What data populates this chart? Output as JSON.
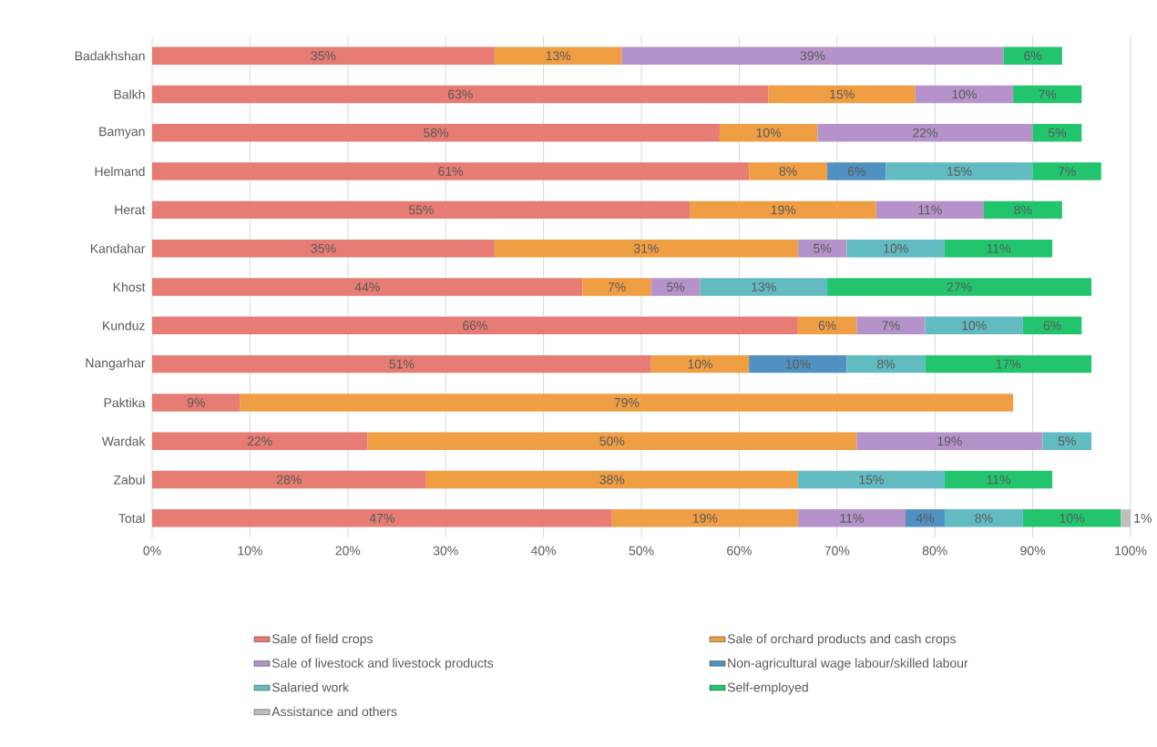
{
  "chart_data": {
    "type": "bar",
    "orientation": "horizontal",
    "stacked": true,
    "categories": [
      "Badakhshan",
      "Balkh",
      "Bamyan",
      "Helmand",
      "Herat",
      "Kandahar",
      "Khost",
      "Kunduz",
      "Nangarhar",
      "Paktika",
      "Wardak",
      "Zabul",
      "Total"
    ],
    "series": [
      {
        "name": "Sale of field crops",
        "color": "#e67c73",
        "values": [
          35,
          63,
          58,
          61,
          55,
          35,
          44,
          66,
          51,
          9,
          22,
          28,
          47
        ],
        "value_labels": [
          "35%",
          "63%",
          "58%",
          "61%",
          "55%",
          "35%",
          "44%",
          "66%",
          "51%",
          "9%",
          "22%",
          "28%",
          "47%"
        ]
      },
      {
        "name": "Sale of orchard products and cash crops",
        "color": "#ef9e43",
        "values": [
          13,
          15,
          10,
          8,
          19,
          31,
          7,
          6,
          10,
          79,
          50,
          38,
          19
        ],
        "value_labels": [
          "13%",
          "15%",
          "10%",
          "8%",
          "19%",
          "31%",
          "7%",
          "6%",
          "10%",
          "79%",
          "50%",
          "38%",
          "19%"
        ]
      },
      {
        "name": "Sale of livestock and livestock products",
        "color": "#b592c9",
        "values": [
          39,
          10,
          22,
          null,
          11,
          5,
          5,
          7,
          null,
          null,
          19,
          null,
          11
        ],
        "value_labels": [
          "39%",
          "10%",
          "22%",
          null,
          "11%",
          "5%",
          "5%",
          "7%",
          null,
          null,
          "19%",
          null,
          "11%"
        ]
      },
      {
        "name": "Non-agricultural wage labour/skilled labour",
        "color": "#5191c1",
        "values": [
          null,
          null,
          null,
          6,
          null,
          null,
          null,
          null,
          10,
          null,
          null,
          null,
          4
        ],
        "value_labels": [
          null,
          null,
          null,
          "6%",
          null,
          null,
          null,
          null,
          "10%",
          null,
          null,
          null,
          "4%"
        ]
      },
      {
        "name": "Salaried work",
        "color": "#62bbc1",
        "values": [
          null,
          null,
          null,
          15,
          null,
          10,
          13,
          10,
          8,
          null,
          5,
          15,
          8
        ],
        "value_labels": [
          null,
          null,
          null,
          "15%",
          null,
          "10%",
          "13%",
          "10%",
          "8%",
          null,
          "5%",
          "15%",
          "8%"
        ]
      },
      {
        "name": "Self-employed",
        "color": "#22c56e",
        "values": [
          6,
          7,
          5,
          7,
          8,
          11,
          27,
          6,
          17,
          null,
          null,
          11,
          10
        ],
        "value_labels": [
          "6%",
          "7%",
          "5%",
          "7%",
          "8%",
          "11%",
          "27%",
          "6%",
          "17%",
          null,
          null,
          "11%",
          "10%"
        ]
      },
      {
        "name": "Assistance and others",
        "color": "#bfbfbf",
        "values": [
          null,
          null,
          null,
          null,
          null,
          null,
          null,
          null,
          null,
          null,
          null,
          null,
          1
        ],
        "value_labels": [
          null,
          null,
          null,
          null,
          null,
          null,
          null,
          null,
          null,
          null,
          null,
          null,
          "1%"
        ]
      }
    ],
    "xlim": [
      0,
      100
    ],
    "xticks": [
      {
        "value": 0,
        "label": "0%"
      },
      {
        "value": 10,
        "label": "10%"
      },
      {
        "value": 20,
        "label": "20%"
      },
      {
        "value": 30,
        "label": "30%"
      },
      {
        "value": 40,
        "label": "40%"
      },
      {
        "value": 50,
        "label": "50%"
      },
      {
        "value": 60,
        "label": "60%"
      },
      {
        "value": 70,
        "label": "70%"
      },
      {
        "value": 80,
        "label": "80%"
      },
      {
        "value": 90,
        "label": "90%"
      },
      {
        "value": 100,
        "label": "100%"
      }
    ],
    "grid": "x",
    "legend": "bottom"
  }
}
